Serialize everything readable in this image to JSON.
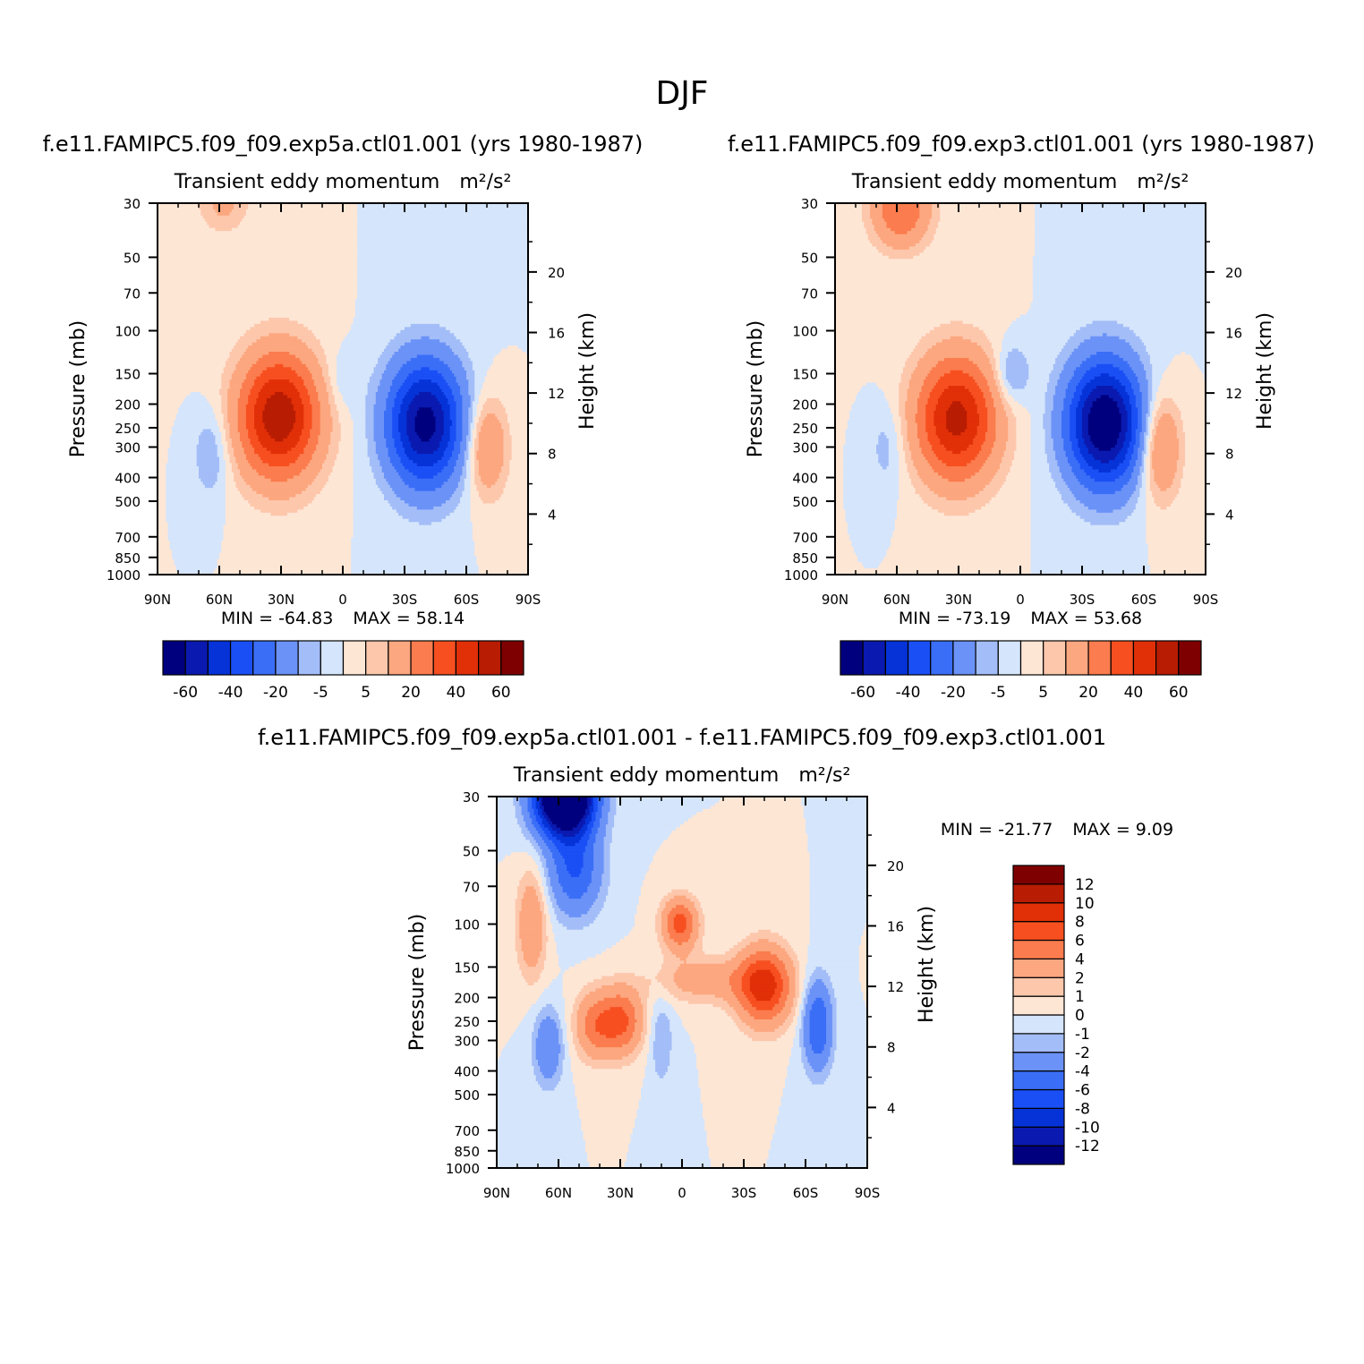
{
  "figure": {
    "season": "DJF",
    "title_top_left": "f.e11.FAMIPC5.f09_f09.exp5a.ctl01.001 (yrs 1980-1987)",
    "title_top_right": "f.e11.FAMIPC5.f09_f09.exp3.ctl01.001 (yrs 1980-1987)",
    "title_bottom": "f.e11.FAMIPC5.f09_f09.exp5a.ctl01.001 - f.e11.FAMIPC5.f09_f09.exp3.ctl01.001"
  },
  "chart_data": [
    {
      "type": "heatmap",
      "id": "panel-exp5a",
      "variable": "Transient eddy momentum",
      "units": "m²/s²",
      "xlabel": "",
      "ylabel": "Pressure (mb)",
      "ylabel_right": "Height (km)",
      "x_ticks": [
        "90N",
        "60N",
        "30N",
        "0",
        "30S",
        "60S",
        "90S"
      ],
      "x_values": [
        90,
        60,
        30,
        0,
        -30,
        -60,
        -90
      ],
      "xlim": [
        90,
        -90
      ],
      "y_ticks": [
        30,
        50,
        70,
        100,
        150,
        200,
        250,
        300,
        400,
        500,
        700,
        850,
        1000
      ],
      "ylim": [
        1000,
        30
      ],
      "y_scale": "log",
      "height_ticks_km": [
        4,
        8,
        12,
        16,
        20
      ],
      "min_label": "MIN = -64.83",
      "max_label": "MAX = 58.14",
      "min": -64.83,
      "max": 58.14,
      "contour_levels": [
        -70,
        -60,
        -50,
        -40,
        -30,
        -20,
        -10,
        -5,
        0,
        5,
        10,
        20,
        30,
        40,
        50,
        60,
        70
      ],
      "colorbar_labels": [
        "-60",
        "-40",
        "-20",
        "-5",
        "5",
        "20",
        "40",
        "60"
      ],
      "features": [
        {
          "lat": 31,
          "p": 225,
          "lat_width": 14,
          "logp_width": 0.42,
          "value": 58.1
        },
        {
          "lat": 58,
          "p": 30,
          "lat_width": 9,
          "logp_width": 0.2,
          "value": 12
        },
        {
          "lat": -40,
          "p": 240,
          "lat_width": 13,
          "logp_width": 0.42,
          "value": -64.8
        },
        {
          "lat": -70,
          "p": 300,
          "lat_width": 7,
          "logp_width": 0.33,
          "value": 22
        },
        {
          "lat": 64,
          "p": 320,
          "lat_width": 6,
          "logp_width": 0.3,
          "value": -11
        },
        {
          "lat": 0,
          "p": 160,
          "lat_width": 6,
          "logp_width": 0.2,
          "value": -6
        }
      ]
    },
    {
      "type": "heatmap",
      "id": "panel-exp3",
      "variable": "Transient eddy momentum",
      "units": "m²/s²",
      "xlabel": "",
      "ylabel": "Pressure (mb)",
      "ylabel_right": "Height (km)",
      "x_ticks": [
        "90N",
        "60N",
        "30N",
        "0",
        "30S",
        "60S",
        "90S"
      ],
      "x_values": [
        90,
        60,
        30,
        0,
        -30,
        -60,
        -90
      ],
      "xlim": [
        90,
        -90
      ],
      "y_ticks": [
        30,
        50,
        70,
        100,
        150,
        200,
        250,
        300,
        400,
        500,
        700,
        850,
        1000
      ],
      "ylim": [
        1000,
        30
      ],
      "y_scale": "log",
      "height_ticks_km": [
        4,
        8,
        12,
        16,
        20
      ],
      "min_label": "MIN = -73.19",
      "max_label": "MAX = 53.68",
      "min": -73.19,
      "max": 53.68,
      "contour_levels": [
        -70,
        -60,
        -50,
        -40,
        -30,
        -20,
        -10,
        -5,
        0,
        5,
        10,
        20,
        30,
        40,
        50,
        60,
        70
      ],
      "colorbar_labels": [
        "-60",
        "-40",
        "-20",
        "-5",
        "5",
        "20",
        "40",
        "60"
      ],
      "features": [
        {
          "lat": 31,
          "p": 230,
          "lat_width": 14,
          "logp_width": 0.42,
          "value": 53.7
        },
        {
          "lat": 58,
          "p": 32,
          "lat_width": 10,
          "logp_width": 0.25,
          "value": 30
        },
        {
          "lat": -41,
          "p": 240,
          "lat_width": 13,
          "logp_width": 0.42,
          "value": -73.2
        },
        {
          "lat": -68,
          "p": 300,
          "lat_width": 7,
          "logp_width": 0.35,
          "value": 25
        },
        {
          "lat": 65,
          "p": 300,
          "lat_width": 6,
          "logp_width": 0.3,
          "value": -8
        },
        {
          "lat": 4,
          "p": 150,
          "lat_width": 6,
          "logp_width": 0.2,
          "value": -14
        }
      ]
    },
    {
      "type": "heatmap",
      "id": "panel-difference",
      "variable": "Transient eddy momentum",
      "units": "m²/s²",
      "xlabel": "",
      "ylabel": "Pressure (mb)",
      "ylabel_right": "Height (km)",
      "x_ticks": [
        "90N",
        "60N",
        "30N",
        "0",
        "30S",
        "60S",
        "90S"
      ],
      "x_values": [
        90,
        60,
        30,
        0,
        -30,
        -60,
        -90
      ],
      "xlim": [
        90,
        -90
      ],
      "y_ticks": [
        30,
        50,
        70,
        100,
        150,
        200,
        250,
        300,
        400,
        500,
        700,
        850,
        1000
      ],
      "ylim": [
        1000,
        30
      ],
      "y_scale": "log",
      "height_ticks_km": [
        4,
        8,
        12,
        16,
        20
      ],
      "min_label": "MIN = -21.77",
      "max_label": "MAX = 9.09",
      "min": -21.77,
      "max": 9.09,
      "contour_levels": [
        -14,
        -12,
        -10,
        -8,
        -6,
        -4,
        -2,
        -1,
        0,
        1,
        2,
        4,
        6,
        8,
        10,
        12,
        14
      ],
      "colorbar_labels": [
        "12",
        "10",
        "8",
        "6",
        "4",
        "2",
        "1",
        "0",
        "-1",
        "-2",
        "-4",
        "-6",
        "-8",
        "-10",
        "-12"
      ],
      "features": [
        {
          "lat": 57,
          "p": 30,
          "lat_width": 10,
          "logp_width": 0.25,
          "value": -21.8
        },
        {
          "lat": 52,
          "p": 60,
          "lat_width": 9,
          "logp_width": 0.3,
          "value": -6
        },
        {
          "lat": 73,
          "p": 100,
          "lat_width": 5,
          "logp_width": 0.35,
          "value": 4
        },
        {
          "lat": 1,
          "p": 100,
          "lat_width": 6,
          "logp_width": 0.17,
          "value": 7
        },
        {
          "lat": -40,
          "p": 180,
          "lat_width": 9,
          "logp_width": 0.25,
          "value": 9.1
        },
        {
          "lat": -12,
          "p": 170,
          "lat_width": 18,
          "logp_width": 0.15,
          "value": 3
        },
        {
          "lat": 29,
          "p": 250,
          "lat_width": 7,
          "logp_width": 0.22,
          "value": 6
        },
        {
          "lat": 42,
          "p": 260,
          "lat_width": 7,
          "logp_width": 0.22,
          "value": 5
        },
        {
          "lat": -66,
          "p": 260,
          "lat_width": 5,
          "logp_width": 0.3,
          "value": -6
        },
        {
          "lat": 65,
          "p": 320,
          "lat_width": 5,
          "logp_width": 0.25,
          "value": -4
        },
        {
          "lat": 10,
          "p": 300,
          "lat_width": 4,
          "logp_width": 0.3,
          "value": -2
        }
      ]
    }
  ],
  "colors": {
    "neg": [
      "#00007f",
      "#0a1ab0",
      "#0533d8",
      "#1a4ff5",
      "#3b6ef7",
      "#6b92f7",
      "#a3bdf8",
      "#d5e5fb"
    ],
    "pos": [
      "#fee6d5",
      "#fdc7ac",
      "#fca77f",
      "#fb7c4e",
      "#f74f20",
      "#e12f08",
      "#b81c02",
      "#7f0000"
    ]
  }
}
